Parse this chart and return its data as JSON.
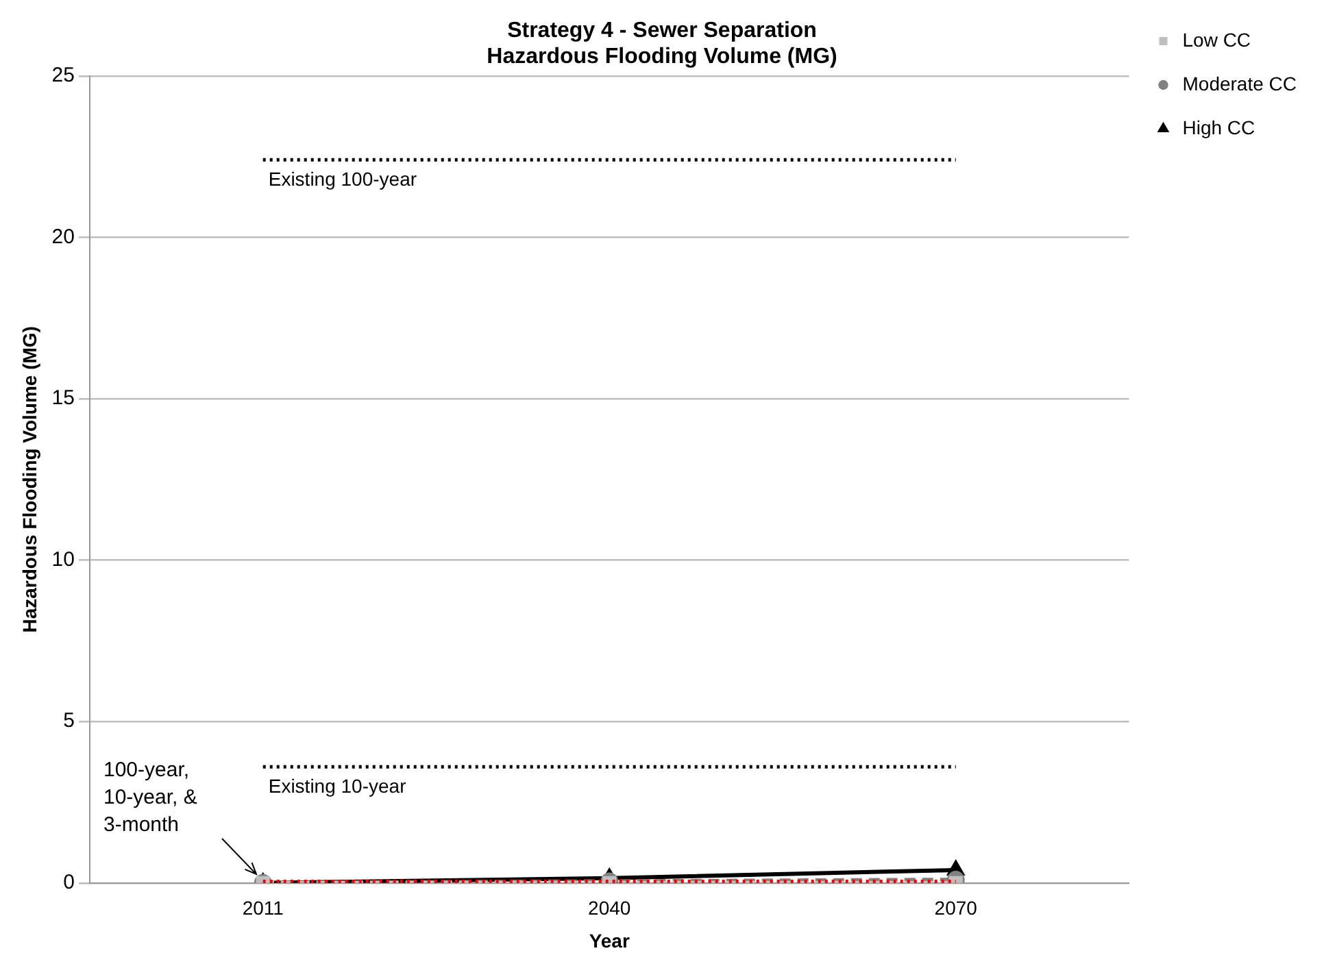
{
  "chart_data": {
    "type": "line",
    "title": "Strategy 4 - Sewer Separation\nHazardous Flooding Volume (MG)",
    "xlabel": "Year",
    "ylabel": "Hazardous Flooding Volume (MG)",
    "categories": [
      "2011",
      "2040",
      "2070"
    ],
    "series": [
      {
        "name": "High CC",
        "color": "#000000",
        "values": [
          0,
          0.15,
          0.4
        ],
        "marker": "triangle",
        "line_style": "solid"
      },
      {
        "name": "Moderate CC",
        "color": "#808080",
        "values": [
          0,
          0.05,
          0.1
        ],
        "marker": "circle",
        "line_style": "dashed"
      },
      {
        "name": "Low CC",
        "color": "#bfbfbf",
        "values": [
          0,
          0,
          0
        ],
        "marker": "square",
        "line_style": "dashed"
      }
    ],
    "ylim": [
      0,
      25
    ],
    "yticks": [
      0,
      5,
      10,
      15,
      20,
      25
    ],
    "grid": "y",
    "legend": "top right",
    "ref_lines": [
      {
        "axis": "y",
        "value": 22.4,
        "label": "Existing 100-year",
        "color": "#000000",
        "line_style": "dotted"
      },
      {
        "axis": "y",
        "value": 3.6,
        "label": "Existing 10-year",
        "color": "#000000",
        "line_style": "dotted"
      },
      {
        "axis": "y",
        "value": 0.05,
        "color": "#ff0000",
        "line_style": "dotted"
      }
    ],
    "annotations": [
      {
        "text": "100-year, 10-year, & 3-month",
        "x": "2011",
        "y": 0
      }
    ]
  }
}
